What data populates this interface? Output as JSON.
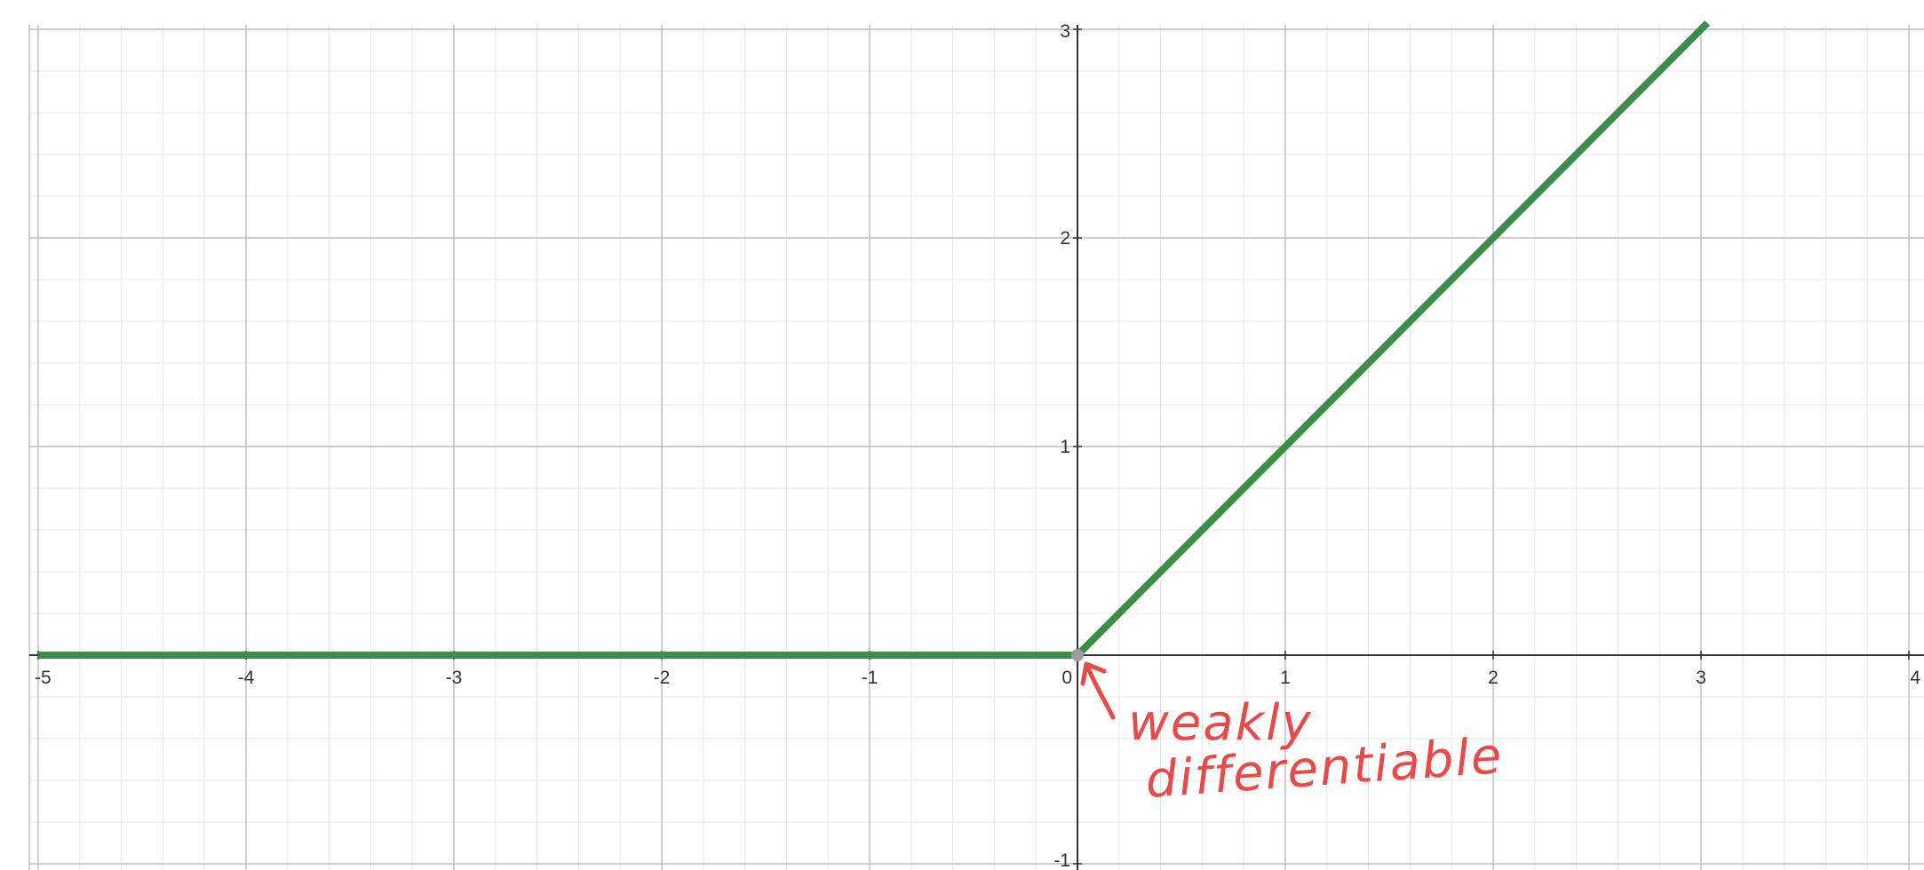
{
  "chart_data": {
    "type": "line",
    "title": "",
    "xlabel": "",
    "ylabel": "",
    "xlim": [
      -5,
      4
    ],
    "ylim": [
      -1,
      3
    ],
    "grid": true,
    "x_ticks": [
      -5,
      -4,
      -3,
      -2,
      -1,
      0,
      1,
      2,
      3,
      4
    ],
    "y_ticks": [
      -1,
      1,
      2,
      3
    ],
    "series": [
      {
        "color": "#3d8c4a",
        "points": [
          [
            -5,
            0
          ],
          [
            0,
            0
          ],
          [
            3.03,
            3.03
          ]
        ]
      }
    ],
    "marker": {
      "x": 0,
      "y": 0,
      "color": "#9e9e9e"
    },
    "annotation": {
      "line1": "weakly",
      "line2": "differentiable",
      "color": "#e84a4a",
      "points_to": [
        0,
        0
      ]
    }
  }
}
